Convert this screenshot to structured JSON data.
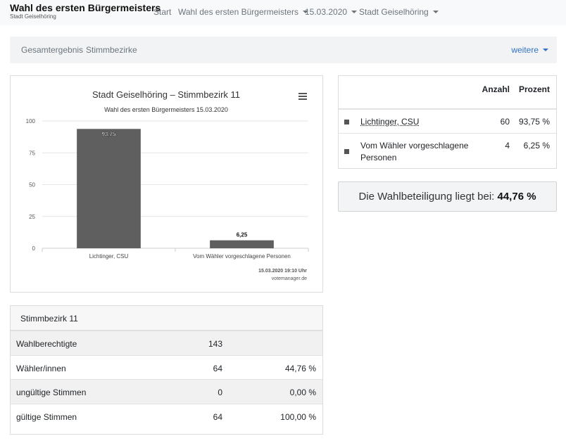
{
  "navbar": {
    "brand_title": "Wahl des ersten Bürgermeisters",
    "brand_subtitle": "Stadt Geiselhöring",
    "links": [
      "Start",
      "Wahl des ersten Bürgermeisters",
      "15.03.2020",
      "Stadt Geiselhöring"
    ]
  },
  "subnav": {
    "tabs": [
      "Gesamtergebnis",
      "Stimmbezirke"
    ],
    "more_label": "weitere"
  },
  "chart_data": {
    "type": "bar",
    "title": "Stadt Geiselhöring – Stimmbezirk 11",
    "subtitle": "Wahl des ersten Bürgermeisters 15.03.2020",
    "categories": [
      "Lichtinger, CSU",
      "Vom Wähler vorgeschlagene Personen"
    ],
    "values": [
      93.75,
      6.25
    ],
    "value_labels": [
      "93,75",
      "6,25"
    ],
    "ylim": [
      0,
      100
    ],
    "yticks": [
      "0",
      "25",
      "50",
      "75",
      "100"
    ],
    "bar_color": "#5f5f5f",
    "grid": true,
    "credit_date": "15.03.2020 19:10 Uhr",
    "credit_site": "votemanager.de"
  },
  "stats": {
    "title": "Stimmbezirk 11",
    "rows": [
      {
        "label": "Wahlberechtigte",
        "count": "143",
        "pct": ""
      },
      {
        "label": "Wähler/innen",
        "count": "64",
        "pct": "44,76 %"
      },
      {
        "label": "ungültige Stimmen",
        "count": "0",
        "pct": "0,00 %"
      },
      {
        "label": "gültige Stimmen",
        "count": "64",
        "pct": "100,00 %"
      }
    ]
  },
  "results": {
    "header_count": "Anzahl",
    "header_pct": "Prozent",
    "rows": [
      {
        "name": "Lichtinger, CSU",
        "count": "60",
        "pct": "93,75 %"
      },
      {
        "name_line1": "Vom Wähler vorgeschlagene",
        "name_line2": "Personen",
        "count": "4",
        "pct": "6,25 %"
      }
    ]
  },
  "turnout": {
    "text": "Die Wahlbeteiligung liegt bei:",
    "value": "44,76 %"
  },
  "colors": {
    "accent_link": "#3273c7",
    "bar": "#5f5f5f"
  }
}
